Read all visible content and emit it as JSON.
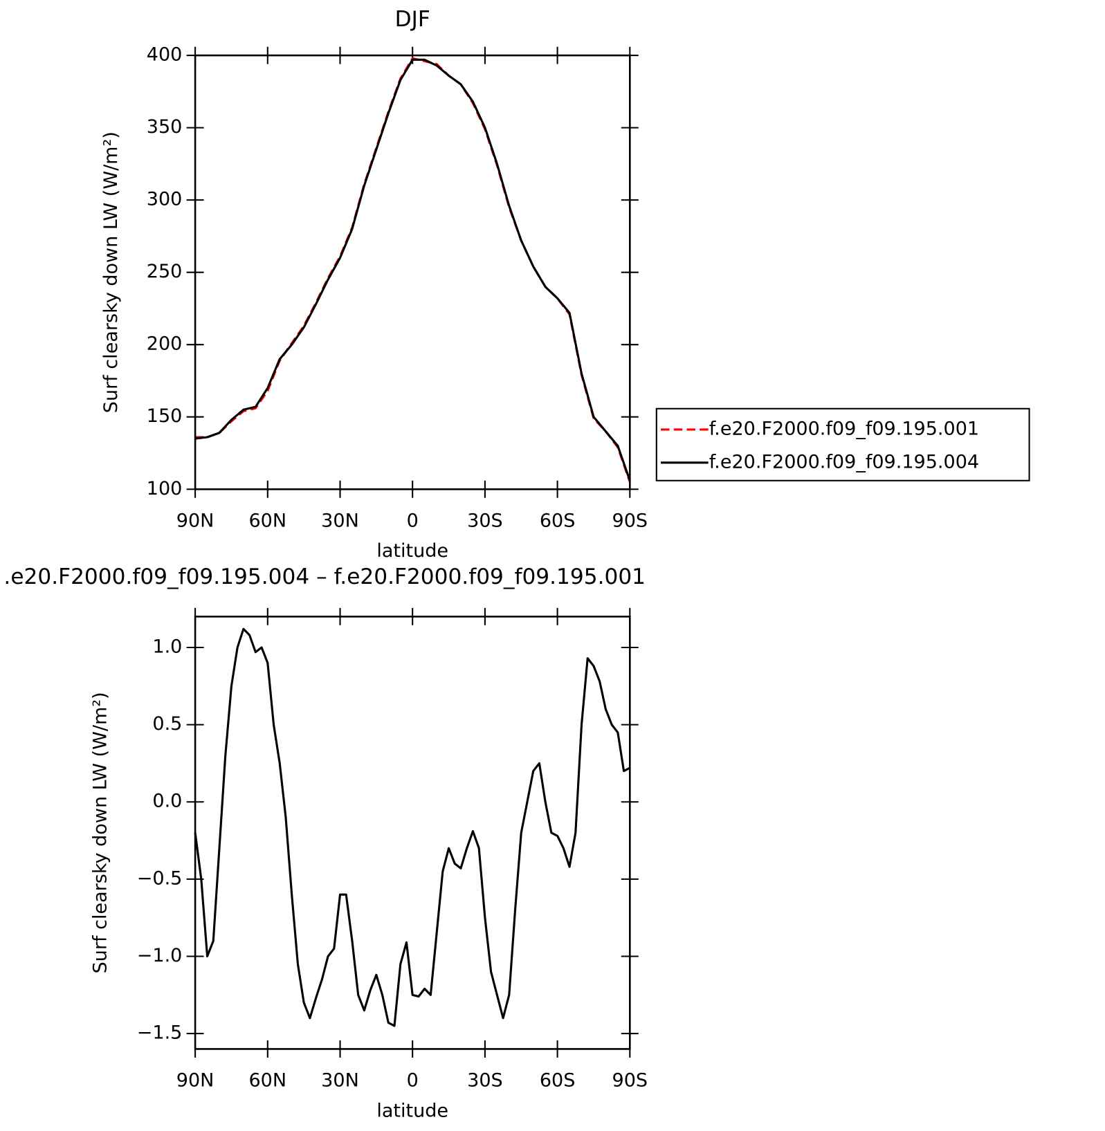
{
  "chart_data": [
    {
      "type": "line",
      "title": "DJF",
      "xlabel": "latitude",
      "ylabel": "Surf clearsky down LW (W/m²)",
      "x": [
        90,
        85,
        80,
        75,
        70,
        65,
        60,
        55,
        50,
        45,
        40,
        35,
        30,
        25,
        20,
        15,
        10,
        5,
        0,
        -5,
        -10,
        -15,
        -20,
        -25,
        -30,
        -35,
        -40,
        -45,
        -50,
        -55,
        -60,
        -65,
        -70,
        -75,
        -80,
        -85,
        -90
      ],
      "xlim": [
        90,
        -90
      ],
      "xticks": [
        {
          "value": 90,
          "label": "90N"
        },
        {
          "value": 60,
          "label": "60N"
        },
        {
          "value": 30,
          "label": "30N"
        },
        0,
        {
          "value": -30,
          "label": "30S"
        },
        {
          "value": -60,
          "label": "60S"
        },
        {
          "value": -90,
          "label": "90S"
        }
      ],
      "ylim": [
        100,
        400
      ],
      "yticks": [
        100,
        150,
        200,
        250,
        300,
        350,
        400
      ],
      "series": [
        {
          "name": "f.e20.F2000.f09_f09.195.001",
          "color": "#ff0000",
          "dash": true,
          "values": [
            136,
            136,
            139,
            147,
            154,
            156,
            168,
            189,
            201,
            213,
            229,
            246,
            261,
            281,
            311,
            336,
            361,
            384,
            398,
            396,
            394,
            386,
            380,
            367,
            349,
            324,
            295,
            272,
            254,
            240,
            232,
            221,
            179,
            149,
            140,
            129,
            105
          ]
        },
        {
          "name": "f.e20.F2000.f09_f09.195.004",
          "color": "#000000",
          "dash": false,
          "values": [
            135,
            136,
            139,
            148,
            155,
            157,
            170,
            190,
            200,
            212,
            228,
            245,
            260,
            280,
            310,
            335,
            360,
            383,
            397,
            397,
            393,
            386,
            380,
            368,
            350,
            325,
            296,
            272,
            254,
            240,
            232,
            222,
            180,
            150,
            140,
            130,
            106
          ]
        }
      ]
    },
    {
      "type": "line",
      "title": ".e20.F2000.f09_f09.195.004 – f.e20.F2000.f09_f09.195.001",
      "xlabel": "latitude",
      "ylabel": "Surf clearsky down LW (W/m²)",
      "x": [
        90,
        87.5,
        85,
        82.5,
        80,
        77.5,
        75,
        72.5,
        70,
        67.5,
        65,
        62.5,
        60,
        57.5,
        55,
        52.5,
        50,
        47.5,
        45,
        42.5,
        40,
        37.5,
        35,
        32.5,
        30,
        27.5,
        25,
        22.5,
        20,
        17.5,
        15,
        12.5,
        10,
        7.5,
        5,
        2.5,
        0,
        -2.5,
        -5,
        -7.5,
        -10,
        -12.5,
        -15,
        -17.5,
        -20,
        -22.5,
        -25,
        -27.5,
        -30,
        -32.5,
        -35,
        -37.5,
        -40,
        -42.5,
        -45,
        -47.5,
        -50,
        -52.5,
        -55,
        -57.5,
        -60,
        -62.5,
        -65,
        -67.5,
        -70,
        -72.5,
        -75,
        -77.5,
        -80,
        -82.5,
        -85,
        -87.5,
        -90
      ],
      "xlim": [
        90,
        -90
      ],
      "xticks": [
        {
          "value": 90,
          "label": "90N"
        },
        {
          "value": 60,
          "label": "60N"
        },
        {
          "value": 30,
          "label": "30N"
        },
        0,
        {
          "value": -30,
          "label": "30S"
        },
        {
          "value": -60,
          "label": "60S"
        },
        {
          "value": -90,
          "label": "90S"
        }
      ],
      "ylim": [
        -1.6,
        1.2
      ],
      "yticks": [
        {
          "value": -1.5,
          "label": "−1.5"
        },
        {
          "value": -1,
          "label": "−1.0"
        },
        {
          "value": -0.5,
          "label": "−0.5"
        },
        {
          "value": 0,
          "label": "0.0"
        },
        0.5,
        {
          "value": 1,
          "label": "1.0"
        }
      ],
      "series": [
        {
          "color": "#000000",
          "dash": false,
          "values": [
            -0.2,
            -0.5,
            -1.0,
            -0.9,
            -0.3,
            0.3,
            0.75,
            1.0,
            1.12,
            1.08,
            0.97,
            1.0,
            0.9,
            0.5,
            0.25,
            -0.1,
            -0.6,
            -1.05,
            -1.3,
            -1.4,
            -1.27,
            -1.15,
            -1.0,
            -0.95,
            -0.6,
            -0.6,
            -0.9,
            -1.25,
            -1.35,
            -1.22,
            -1.12,
            -1.25,
            -1.43,
            -1.45,
            -1.05,
            -0.91,
            -1.25,
            -1.26,
            -1.21,
            -1.25,
            -0.85,
            -0.45,
            -0.3,
            -0.4,
            -0.43,
            -0.3,
            -0.19,
            -0.3,
            -0.75,
            -1.1,
            -1.25,
            -1.4,
            -1.25,
            -0.7,
            -0.2,
            0.0,
            0.2,
            0.25,
            0.0,
            -0.2,
            -0.22,
            -0.3,
            -0.42,
            -0.2,
            0.5,
            0.93,
            0.88,
            0.78,
            0.6,
            0.5,
            0.45,
            0.2,
            0.22
          ]
        }
      ]
    }
  ]
}
